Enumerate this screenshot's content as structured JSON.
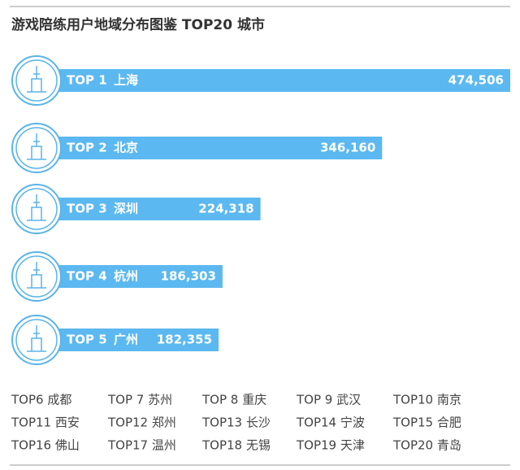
{
  "chart_data": {
    "type": "bar",
    "title": "游戏陪练用户地域分布图鉴 TOP20 城市",
    "ranks": [
      "TOP 1",
      "TOP 2",
      "TOP 3",
      "TOP 4",
      "TOP 5"
    ],
    "categories": [
      "上海",
      "北京",
      "深圳",
      "杭州",
      "广州"
    ],
    "values": [
      474506,
      346160,
      224318,
      186303,
      182355
    ],
    "value_labels": [
      "474,506",
      "346,160",
      "224,318",
      "186,303",
      "182,355"
    ],
    "color": "#5cb8f0",
    "others": [
      "TOP6 成都",
      "TOP 7 苏州",
      "TOP 8 重庆",
      "TOP 9 武汉",
      "TOP10 南京",
      "TOP11 西安",
      "TOP12 郑州",
      "TOP13 长沙",
      "TOP14 宁波",
      "TOP15 合肥",
      "TOP16 佛山",
      "TOP17 温州",
      "TOP18 无锡",
      "TOP19 天津",
      "TOP20 青岛"
    ]
  }
}
